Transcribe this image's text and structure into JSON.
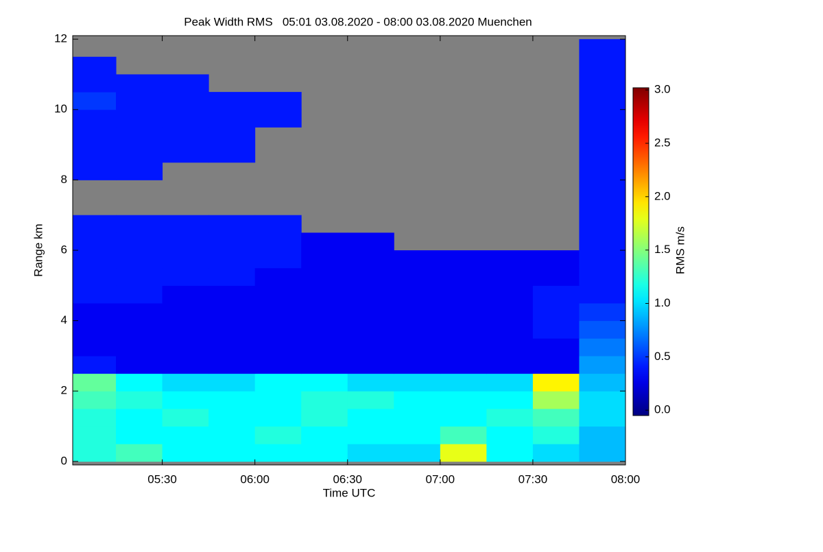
{
  "chart_data": {
    "type": "heatmap",
    "title": "Peak Width RMS   05:01 03.08.2020 - 08:00 03.08.2020 Muenchen",
    "x_label": "Time UTC",
    "y_label": "Range km",
    "colorbar_label": "RMS m/s",
    "colormap": "jet",
    "missing_color": "#808080",
    "xlim": [
      301,
      480
    ],
    "xticks": [
      {
        "value": 330,
        "label": "05:30"
      },
      {
        "value": 360,
        "label": "06:00"
      },
      {
        "value": 390,
        "label": "06:30"
      },
      {
        "value": 420,
        "label": "07:00"
      },
      {
        "value": 450,
        "label": "07:30"
      },
      {
        "value": 480,
        "label": "08:00"
      }
    ],
    "ylim": [
      -0.1,
      12.1
    ],
    "yticks": [
      0,
      2,
      4,
      6,
      8,
      10,
      12
    ],
    "clim": [
      -0.05,
      3.02
    ],
    "cticks": [
      {
        "value": 0,
        "label": "0.0"
      },
      {
        "value": 0.5,
        "label": "0.5"
      },
      {
        "value": 1,
        "label": "1.0"
      },
      {
        "value": 1.5,
        "label": "1.5"
      },
      {
        "value": 2,
        "label": "2.0"
      },
      {
        "value": 2.5,
        "label": "2.5"
      },
      {
        "value": 3,
        "label": "3.0"
      }
    ],
    "x_bins": [
      301,
      315,
      330,
      345,
      360,
      375,
      390,
      405,
      420,
      435,
      450,
      465,
      480
    ],
    "y_bins": [
      0,
      0.5,
      1,
      1.5,
      2,
      2.5,
      3,
      3.5,
      4,
      4.5,
      5,
      5.5,
      6,
      6.5,
      7,
      7.5,
      8,
      8.5,
      9,
      9.5,
      10,
      10.5,
      11,
      11.5,
      12
    ],
    "z": [
      [
        1.2,
        1.3,
        1.1,
        1.1,
        1.1,
        1.1,
        1.0,
        1.0,
        1.8,
        1.1,
        1.0,
        0.9
      ],
      [
        1.2,
        1.1,
        1.1,
        1.1,
        1.2,
        1.1,
        1.1,
        1.1,
        1.3,
        1.1,
        1.2,
        0.9
      ],
      [
        1.2,
        1.1,
        1.2,
        1.1,
        1.1,
        1.2,
        1.1,
        1.1,
        1.1,
        1.2,
        1.3,
        1.0
      ],
      [
        1.3,
        1.2,
        1.1,
        1.1,
        1.1,
        1.2,
        1.2,
        1.1,
        1.1,
        1.1,
        1.6,
        1.0
      ],
      [
        1.4,
        1.1,
        1.0,
        1.0,
        1.1,
        1.1,
        1.0,
        1.0,
        1.0,
        1.0,
        1.9,
        0.9
      ],
      [
        0.4,
        0.3,
        0.3,
        0.3,
        0.3,
        0.3,
        0.3,
        0.3,
        0.3,
        0.3,
        0.3,
        0.8
      ],
      [
        0.3,
        0.3,
        0.3,
        0.3,
        0.3,
        0.3,
        0.3,
        0.3,
        0.3,
        0.3,
        0.3,
        0.7
      ],
      [
        0.3,
        0.3,
        0.3,
        0.3,
        0.3,
        0.3,
        0.3,
        0.3,
        0.3,
        0.3,
        0.4,
        0.6
      ],
      [
        0.3,
        0.3,
        0.3,
        0.3,
        0.3,
        0.3,
        0.3,
        0.3,
        0.3,
        0.3,
        0.4,
        0.5
      ],
      [
        0.4,
        0.4,
        0.3,
        0.3,
        0.3,
        0.3,
        0.3,
        0.3,
        0.3,
        0.3,
        0.4,
        0.4
      ],
      [
        0.4,
        0.4,
        0.4,
        0.4,
        0.3,
        0.3,
        0.3,
        0.3,
        0.3,
        0.3,
        0.3,
        0.4
      ],
      [
        0.4,
        0.4,
        0.4,
        0.4,
        0.4,
        0.3,
        0.3,
        0.3,
        0.3,
        0.3,
        0.3,
        0.4
      ],
      [
        0.4,
        0.4,
        0.4,
        0.4,
        0.4,
        0.3,
        0.3,
        null,
        null,
        null,
        null,
        0.4
      ],
      [
        0.4,
        0.4,
        0.4,
        0.4,
        0.4,
        null,
        null,
        null,
        null,
        null,
        null,
        0.4
      ],
      [
        null,
        null,
        null,
        null,
        null,
        null,
        null,
        null,
        null,
        null,
        null,
        0.4
      ],
      [
        null,
        null,
        null,
        null,
        null,
        null,
        null,
        null,
        null,
        null,
        null,
        0.4
      ],
      [
        0.4,
        0.4,
        null,
        null,
        null,
        null,
        null,
        null,
        null,
        null,
        null,
        0.4
      ],
      [
        0.4,
        0.4,
        0.4,
        0.4,
        null,
        null,
        null,
        null,
        null,
        null,
        null,
        0.4
      ],
      [
        0.4,
        0.4,
        0.4,
        0.4,
        null,
        null,
        null,
        null,
        null,
        null,
        null,
        0.4
      ],
      [
        0.4,
        0.4,
        0.4,
        0.4,
        0.4,
        null,
        null,
        null,
        null,
        null,
        null,
        0.4
      ],
      [
        0.5,
        0.4,
        0.4,
        0.4,
        0.4,
        null,
        null,
        null,
        null,
        null,
        null,
        0.4
      ],
      [
        0.4,
        0.4,
        0.4,
        null,
        null,
        null,
        null,
        null,
        null,
        null,
        null,
        0.4
      ],
      [
        0.4,
        null,
        null,
        null,
        null,
        null,
        null,
        null,
        null,
        null,
        null,
        0.4
      ],
      [
        null,
        null,
        null,
        null,
        null,
        null,
        null,
        null,
        null,
        null,
        null,
        0.4
      ]
    ]
  }
}
